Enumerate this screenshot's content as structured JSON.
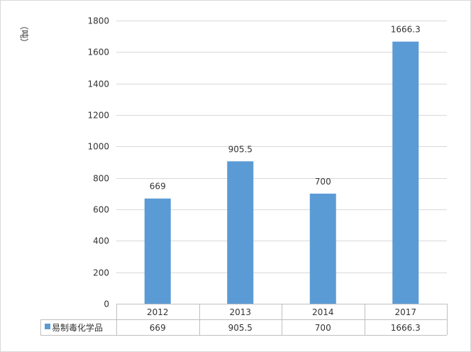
{
  "chart_data": {
    "type": "bar",
    "categories": [
      "2012",
      "2013",
      "2014",
      "2017"
    ],
    "series": [
      {
        "name": "易制毒化学品",
        "values": [
          669,
          905.5,
          700,
          1666.3
        ],
        "color": "#5b9bd5"
      }
    ],
    "data_labels": [
      "669",
      "905.5",
      "700",
      "1666.3"
    ],
    "ylabel": "（吨）",
    "ylim": [
      0,
      1800
    ],
    "yticks": [
      "0",
      "200",
      "400",
      "600",
      "800",
      "1000",
      "1200",
      "1400",
      "1600",
      "1800"
    ],
    "grid": true,
    "legend": "data-table",
    "table_values": [
      "669",
      "905.5",
      "700",
      "1666.3"
    ]
  }
}
